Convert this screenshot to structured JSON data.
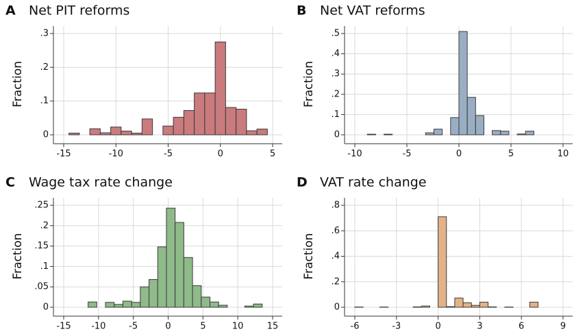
{
  "chart_data": [
    {
      "type": "histogram",
      "label": "A",
      "title": "Net PIT reforms",
      "ylabel": "Fraction",
      "color": "#c97b7e",
      "edgecolor": "#3a3a3a",
      "grid": true,
      "bins": [
        -14.5,
        -13.5,
        -12.5,
        -11.5,
        -10.5,
        -9.5,
        -8.5,
        -7.5,
        -6.5,
        -5.5,
        -4.5,
        -3.5,
        -2.5,
        -1.5,
        -0.5,
        0.5,
        1.5,
        2.5,
        3.5,
        4.5
      ],
      "values": [
        0.005,
        0,
        0.018,
        0.006,
        0.023,
        0.011,
        0.005,
        0.047,
        0,
        0.026,
        0.052,
        0.072,
        0.124,
        0.124,
        0.275,
        0.081,
        0.076,
        0.012,
        0.017
      ],
      "xlim": [
        -15,
        5
      ],
      "xticks": [
        -15,
        -10,
        -5,
        0,
        5
      ],
      "ylim": [
        0,
        0.3
      ],
      "yticks": [
        0,
        {
          "value": 0.1,
          "label": ".1"
        },
        {
          "value": 0.2,
          "label": ".2"
        },
        {
          "value": 0.3,
          "label": ".3"
        }
      ]
    },
    {
      "type": "histogram",
      "label": "B",
      "title": "Net VAT reforms",
      "ylabel": "Fraction",
      "color": "#9aaec3",
      "edgecolor": "#3a3a3a",
      "grid": true,
      "bins": [
        -9.6,
        -8.8,
        -8,
        -7.2,
        -6.4,
        -5.6,
        -4.8,
        -4,
        -3.2,
        -2.4,
        -1.6,
        -0.8,
        0,
        0.8,
        1.6,
        2.4,
        3.2,
        4,
        4.8,
        5.6,
        6.4,
        7.2
      ],
      "values": [
        0,
        0.003,
        0,
        0.003,
        0,
        0,
        0,
        0,
        0.01,
        0.028,
        0,
        0.085,
        0.51,
        0.185,
        0.095,
        0,
        0.021,
        0.018,
        0,
        0.004,
        0.018
      ],
      "xlim": [
        -10,
        10
      ],
      "xticks": [
        -10,
        -5,
        0,
        5,
        10
      ],
      "ylim": [
        0,
        0.5
      ],
      "yticks": [
        0,
        {
          "value": 0.1,
          "label": ".1"
        },
        {
          "value": 0.2,
          "label": ".2"
        },
        {
          "value": 0.3,
          "label": ".3"
        },
        {
          "value": 0.4,
          "label": ".4"
        },
        {
          "value": 0.5,
          "label": ".5"
        }
      ]
    },
    {
      "type": "histogram",
      "label": "C",
      "title": "Wage tax rate change",
      "ylabel": "Fraction",
      "color": "#8fba89",
      "edgecolor": "#3a3a3a",
      "grid": true,
      "bins": [
        -12.75,
        -11.5,
        -10.25,
        -9,
        -7.75,
        -6.5,
        -5.25,
        -4,
        -2.75,
        -1.5,
        -0.25,
        1,
        2.25,
        3.5,
        4.75,
        6,
        7.25,
        8.5,
        9.75,
        11,
        12.25,
        13.5,
        14.75
      ],
      "values": [
        0,
        0.013,
        0,
        0.012,
        0.007,
        0.015,
        0.012,
        0.05,
        0.068,
        0.148,
        0.243,
        0.208,
        0.122,
        0.053,
        0.025,
        0.013,
        0.005,
        0,
        0,
        0.003,
        0.008,
        0
      ],
      "xlim": [
        -15,
        15
      ],
      "xticks": [
        -15,
        -10,
        -5,
        0,
        5,
        10,
        15
      ],
      "ylim": [
        0,
        0.25
      ],
      "yticks": [
        0,
        {
          "value": 0.05,
          "label": ".05"
        },
        {
          "value": 0.1,
          "label": ".1"
        },
        {
          "value": 0.15,
          "label": ".15"
        },
        {
          "value": 0.2,
          "label": ".2"
        },
        {
          "value": 0.25,
          "label": ".25"
        }
      ]
    },
    {
      "type": "histogram",
      "label": "D",
      "title": "VAT rate change",
      "ylabel": "Fraction",
      "color": "#e2b388",
      "edgecolor": "#3a3a3a",
      "grid": true,
      "bins": [
        -6,
        -5.4,
        -4.8,
        -4.2,
        -3.6,
        -3,
        -2.4,
        -1.8,
        -1.2,
        -0.6,
        0,
        0.6,
        1.2,
        1.8,
        2.4,
        3,
        3.6,
        4.2,
        4.8,
        5.4,
        6,
        6.6,
        7.2
      ],
      "values": [
        0.002,
        0,
        0,
        0.002,
        0,
        0,
        0,
        0.003,
        0.01,
        0,
        0.71,
        0.005,
        0.072,
        0.035,
        0.015,
        0.04,
        0.003,
        0,
        0.002,
        0,
        0,
        0.04
      ],
      "xlim": [
        -6,
        9
      ],
      "xticks": [
        -6,
        -3,
        0,
        3,
        6,
        9
      ],
      "ylim": [
        0,
        0.8
      ],
      "yticks": [
        0,
        {
          "value": 0.2,
          "label": ".2"
        },
        {
          "value": 0.4,
          "label": ".4"
        },
        {
          "value": 0.6,
          "label": ".6"
        },
        {
          "value": 0.8,
          "label": ".8"
        }
      ]
    }
  ]
}
